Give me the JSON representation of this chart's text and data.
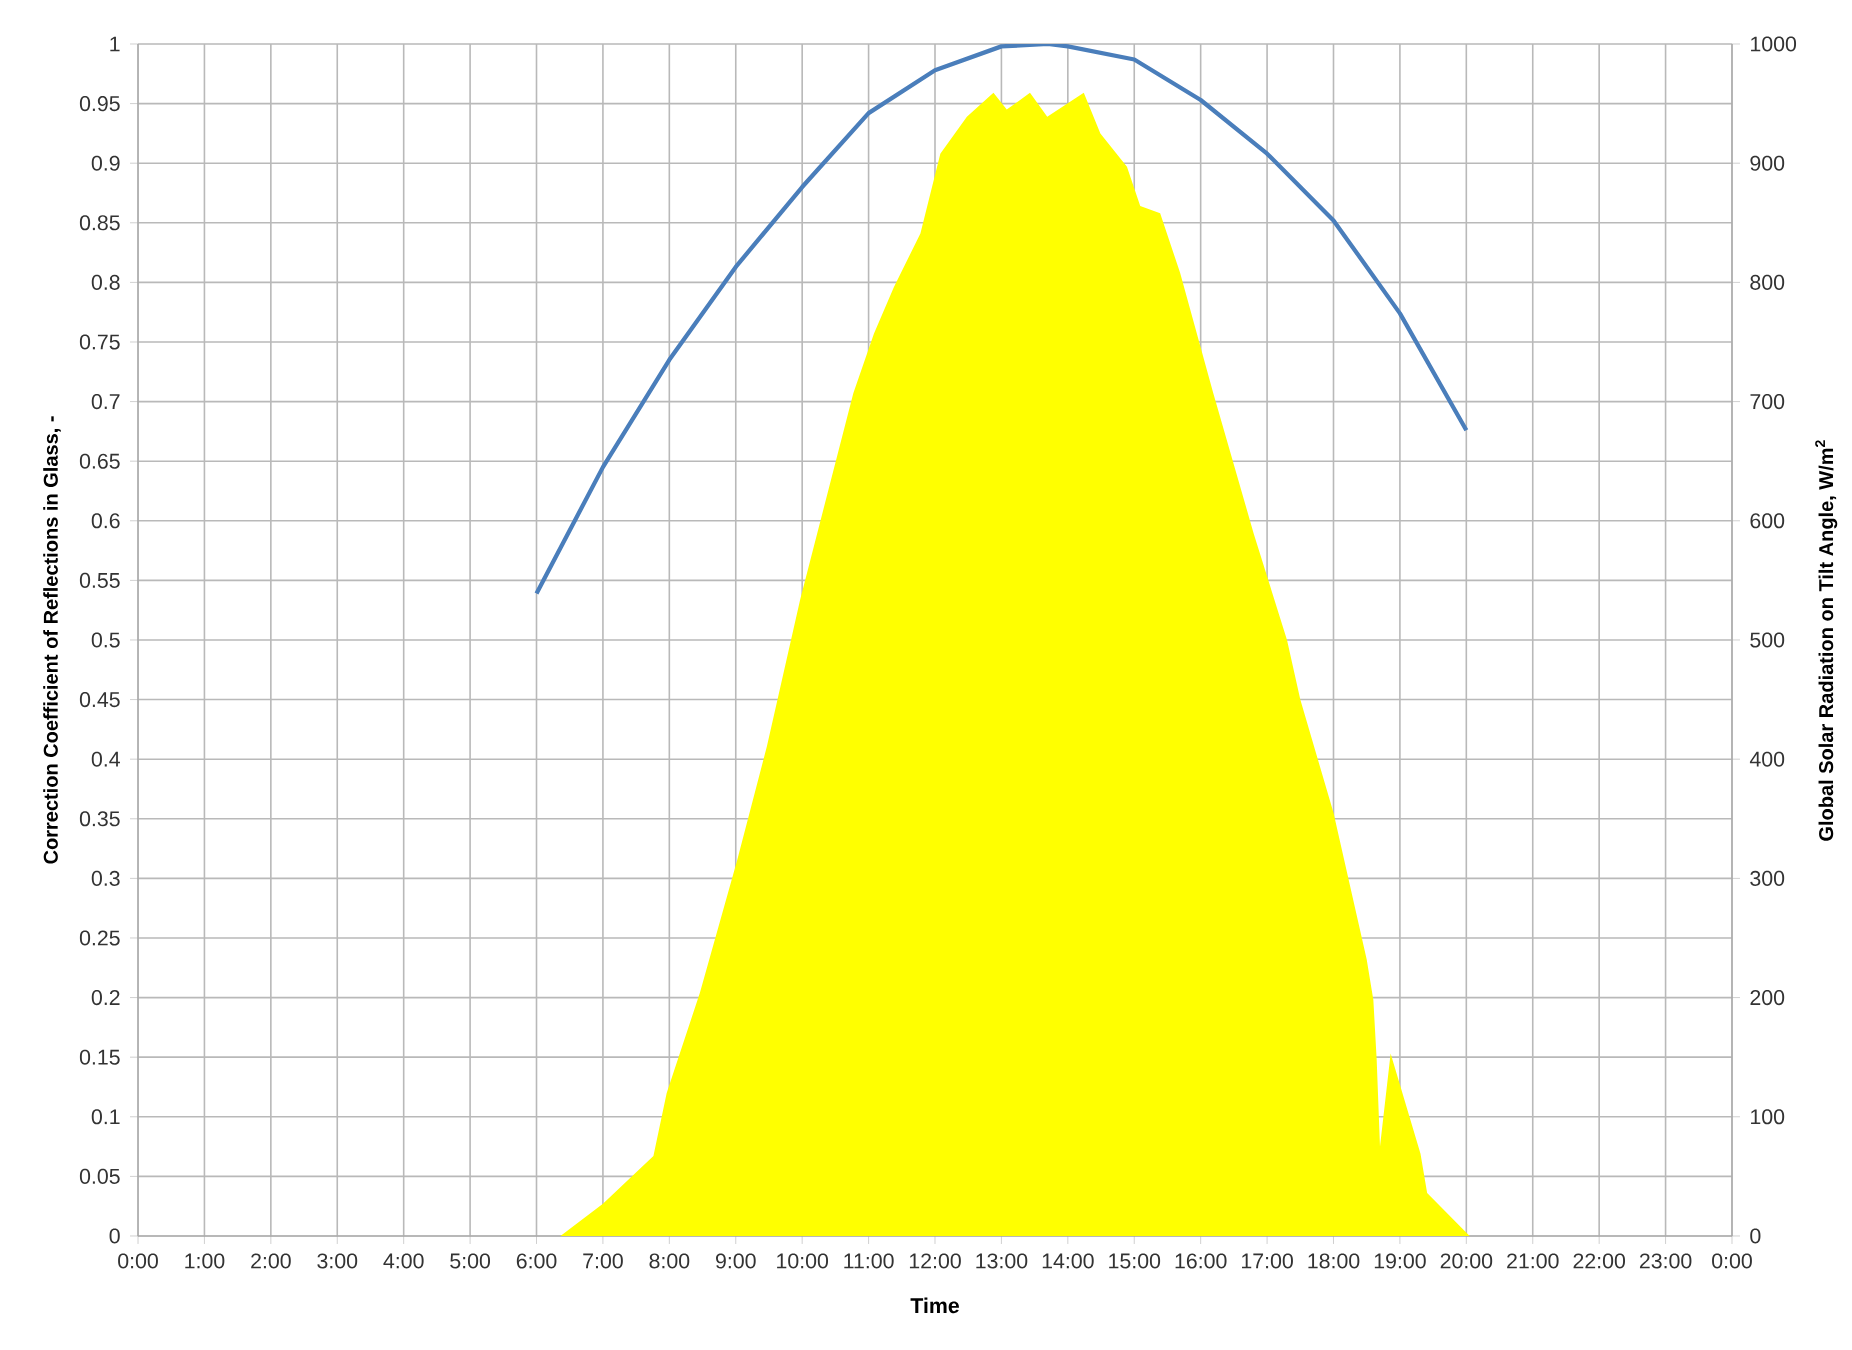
{
  "chart_data": {
    "type": "line",
    "xlabel": "Time",
    "ylabel": "Correction Coefficient of Reflections in Glass, -",
    "y2label": "Global Solar Radiation on Tilt Angle, W/m$^{2}$",
    "xlim": [
      0,
      24
    ],
    "xticks": [
      {
        "value": 0,
        "label": "0:00"
      },
      {
        "value": 1,
        "label": "1:00"
      },
      {
        "value": 2,
        "label": "2:00"
      },
      {
        "value": 3,
        "label": "3:00"
      },
      {
        "value": 4,
        "label": "4:00"
      },
      {
        "value": 5,
        "label": "5:00"
      },
      {
        "value": 6,
        "label": "6:00"
      },
      {
        "value": 7,
        "label": "7:00"
      },
      {
        "value": 8,
        "label": "8:00"
      },
      {
        "value": 9,
        "label": "9:00"
      },
      {
        "value": 10,
        "label": "10:00"
      },
      {
        "value": 11,
        "label": "11:00"
      },
      {
        "value": 12,
        "label": "12:00"
      },
      {
        "value": 13,
        "label": "13:00"
      },
      {
        "value": 14,
        "label": "14:00"
      },
      {
        "value": 15,
        "label": "15:00"
      },
      {
        "value": 16,
        "label": "16:00"
      },
      {
        "value": 17,
        "label": "17:00"
      },
      {
        "value": 18,
        "label": "18:00"
      },
      {
        "value": 19,
        "label": "19:00"
      },
      {
        "value": 20,
        "label": "20:00"
      },
      {
        "value": 21,
        "label": "21:00"
      },
      {
        "value": 22,
        "label": "22:00"
      },
      {
        "value": 23,
        "label": "23:00"
      },
      {
        "value": 24,
        "label": "0:00"
      }
    ],
    "ylim": [
      0,
      1
    ],
    "yticks": [
      0,
      0.05,
      0.1,
      0.15,
      0.2,
      0.25,
      0.3,
      0.35,
      0.4,
      0.45,
      0.5,
      0.55,
      0.6,
      0.65,
      0.7,
      0.75,
      0.8,
      0.85,
      0.9,
      0.95,
      1
    ],
    "y2lim": [
      0,
      1000
    ],
    "y2ticks": [
      0,
      100,
      200,
      300,
      400,
      500,
      600,
      700,
      800,
      900,
      1000
    ],
    "grid": true,
    "series": [
      {
        "type": "area",
        "axis": "y2",
        "color": "#ffff00",
        "x": [
          6.36,
          7.0,
          7.76,
          7.96,
          8.46,
          9.02,
          9.47,
          9.97,
          10.77,
          11.08,
          11.38,
          11.78,
          12.08,
          12.48,
          12.88,
          13.08,
          13.43,
          13.69,
          14.24,
          14.49,
          14.89,
          15.09,
          15.39,
          15.69,
          16.19,
          16.8,
          17.3,
          17.5,
          18.0,
          18.5,
          18.6,
          18.65,
          18.7,
          18.86,
          19.31,
          19.41,
          20.05
        ],
        "values": [
          0,
          27,
          67,
          120,
          204,
          315,
          411,
          534,
          707,
          757,
          796,
          841,
          908,
          939,
          959,
          945,
          959,
          939,
          959,
          925,
          897,
          864,
          858,
          808,
          707,
          589,
          500,
          450,
          355,
          232,
          198,
          148,
          75,
          153,
          69,
          36,
          0
        ]
      },
      {
        "color": "#4a7ebb",
        "x": [
          6,
          7,
          8,
          9,
          10,
          11,
          12,
          13,
          13.7,
          14,
          15,
          16,
          17,
          18,
          19,
          20
        ],
        "values": [
          0.539,
          0.645,
          0.735,
          0.813,
          0.88,
          0.942,
          0.978,
          0.998,
          1.0,
          0.998,
          0.987,
          0.953,
          0.908,
          0.852,
          0.774,
          0.676
        ]
      }
    ]
  }
}
